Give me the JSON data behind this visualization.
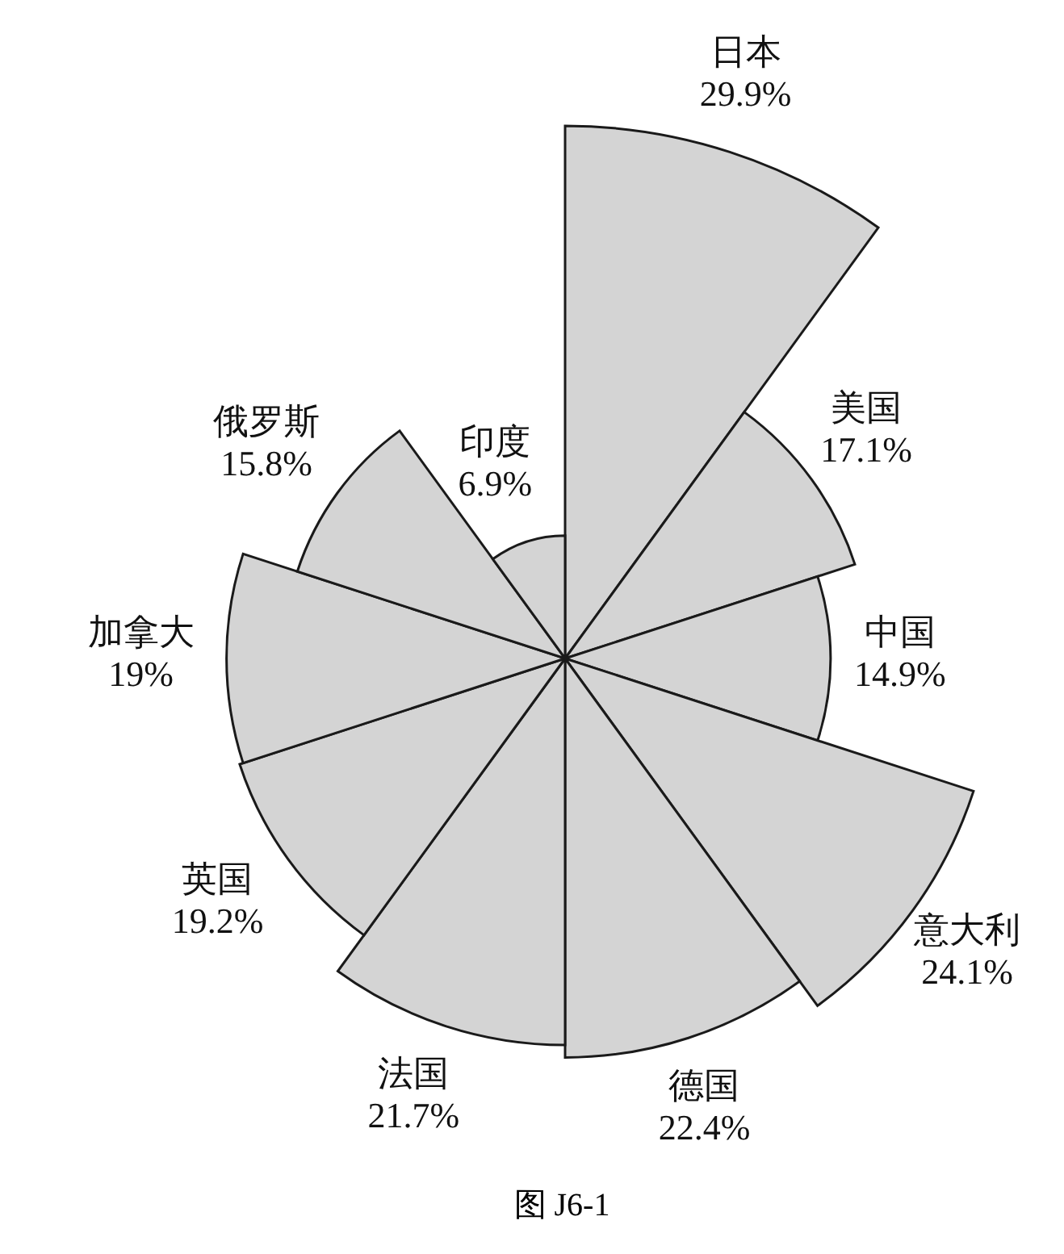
{
  "chart_data": {
    "type": "other",
    "categories": [
      "日本",
      "美国",
      "中国",
      "意大利",
      "德国",
      "法国",
      "英国",
      "加拿大",
      "俄罗斯",
      "印度"
    ],
    "values": [
      29.9,
      17.1,
      14.9,
      24.1,
      22.4,
      21.7,
      19.2,
      19,
      15.8,
      6.9
    ],
    "value_labels": [
      "29.9%",
      "17.1%",
      "14.9%",
      "24.1%",
      "22.4%",
      "21.7%",
      "19.2%",
      "19%",
      "15.8%",
      "6.9%"
    ],
    "color": "#d4d4d4",
    "annotations": [
      "图 J6-1"
    ]
  }
}
